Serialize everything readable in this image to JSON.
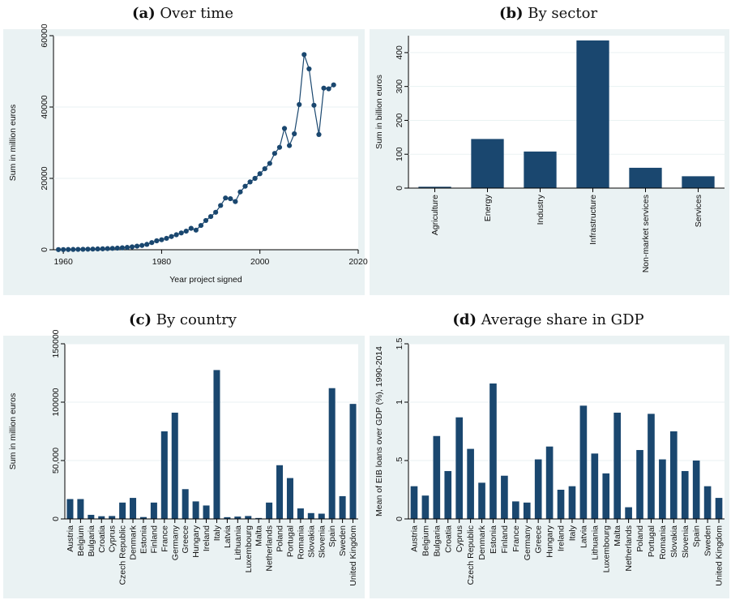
{
  "colors": {
    "bar": "#1a476f",
    "panel_bg": "#eaf2f3",
    "plot_bg": "#ffffff",
    "grid": "#eaf2f3"
  },
  "chart_data": [
    {
      "id": "a",
      "letter": "(a)",
      "title": "Over time",
      "type": "line",
      "xlabel": "Year project signed",
      "ylabel": "Sum in million euros",
      "xlim": [
        1958,
        2020
      ],
      "ylim": [
        0,
        60000
      ],
      "xticks": [
        1960,
        1980,
        2000,
        2020
      ],
      "yticks": [
        0,
        20000,
        40000,
        60000
      ],
      "x": [
        1959,
        1960,
        1961,
        1962,
        1963,
        1964,
        1965,
        1966,
        1967,
        1968,
        1969,
        1970,
        1971,
        1972,
        1973,
        1974,
        1975,
        1976,
        1977,
        1978,
        1979,
        1980,
        1981,
        1982,
        1983,
        1984,
        1985,
        1986,
        1987,
        1988,
        1989,
        1990,
        1991,
        1992,
        1993,
        1994,
        1995,
        1996,
        1997,
        1998,
        1999,
        2000,
        2001,
        2002,
        2003,
        2004,
        2005,
        2006,
        2007,
        2008,
        2009,
        2010,
        2011,
        2012,
        2013,
        2014,
        2015
      ],
      "y": [
        30,
        40,
        60,
        80,
        100,
        120,
        150,
        180,
        220,
        260,
        320,
        380,
        450,
        540,
        650,
        800,
        1000,
        1200,
        1500,
        2000,
        2500,
        2800,
        3200,
        3700,
        4200,
        4700,
        5200,
        6000,
        5500,
        6800,
        8200,
        9300,
        10500,
        12400,
        14500,
        14300,
        13500,
        16200,
        17800,
        19000,
        20000,
        21300,
        22700,
        24200,
        27000,
        28700,
        34000,
        29200,
        32500,
        40700,
        54700,
        50700,
        40500,
        32300,
        45300,
        45100,
        46200
      ],
      "grid": true
    },
    {
      "id": "b",
      "letter": "(b)",
      "title": "By sector",
      "type": "bar",
      "ylabel": "Sum in billion euros",
      "ylim": [
        0,
        450
      ],
      "yticks": [
        0,
        100,
        200,
        300,
        400
      ],
      "categories": [
        "Agriculture",
        "Energy",
        "Industry",
        "Infrastructure",
        "Non-market services",
        "Services"
      ],
      "values": [
        4,
        145,
        108,
        436,
        60,
        35
      ],
      "grid": true
    },
    {
      "id": "c",
      "letter": "(c)",
      "title": "By country",
      "type": "bar",
      "ylabel": "Sum in million euros",
      "ylim": [
        0,
        150000
      ],
      "yticks": [
        0,
        50000,
        100000,
        150000
      ],
      "ytick_labels": [
        "0",
        "50,000",
        "100000",
        "150000"
      ],
      "categories": [
        "Austria",
        "Belgium",
        "Bulgaria",
        "Croatia",
        "Cyprus",
        "Czech Republic",
        "Denmark",
        "Estonia",
        "Finland",
        "France",
        "Germany",
        "Greece",
        "Hungary",
        "Ireland",
        "Italy",
        "Latvia",
        "Lithuania",
        "Luxembourg",
        "Malta",
        "Netherlands",
        "Poland",
        "Portugal",
        "Romania",
        "Slovakia",
        "Slovenia",
        "Spain",
        "Sweden",
        "United Kingdom"
      ],
      "values": [
        17000,
        17000,
        3500,
        2300,
        2500,
        14000,
        18000,
        1600,
        14000,
        75000,
        91000,
        25500,
        15000,
        11500,
        127500,
        1500,
        2000,
        2500,
        800,
        14000,
        46000,
        35000,
        9000,
        5000,
        4500,
        112000,
        19500,
        98500
      ],
      "grid": true
    },
    {
      "id": "d",
      "letter": "(d)",
      "title": "Average share in GDP",
      "type": "bar",
      "ylabel": "Mean of EIB loans over GDP (%), 1990-2014",
      "ylim": [
        0,
        1.5
      ],
      "yticks": [
        0,
        0.5,
        1,
        1.5
      ],
      "ytick_labels": [
        "0",
        ".5",
        "1",
        "1.5"
      ],
      "categories": [
        "Austria",
        "Belgium",
        "Bulgaria",
        "Croatia",
        "Cyprus",
        "Czech Republic",
        "Denmark",
        "Estonia",
        "Finland",
        "France",
        "Germany",
        "Greece",
        "Hungary",
        "Ireland",
        "Italy",
        "Latvia",
        "Lithuania",
        "Luxembourg",
        "Malta",
        "Netherlands",
        "Poland",
        "Portugal",
        "Romania",
        "Slovakia",
        "Slovenia",
        "Spain",
        "Sweden",
        "United Kingdom"
      ],
      "values": [
        0.28,
        0.2,
        0.71,
        0.41,
        0.87,
        0.6,
        0.31,
        1.16,
        0.37,
        0.15,
        0.14,
        0.51,
        0.62,
        0.25,
        0.28,
        0.97,
        0.56,
        0.39,
        0.91,
        0.1,
        0.59,
        0.9,
        0.51,
        0.75,
        0.41,
        0.5,
        0.28,
        0.18
      ],
      "grid": true
    }
  ]
}
